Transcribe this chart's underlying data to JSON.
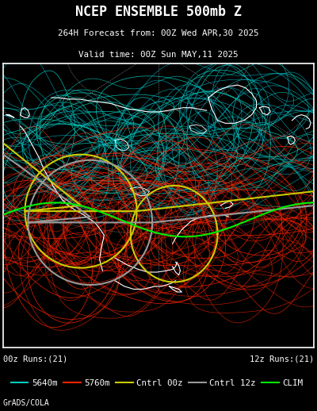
{
  "title_line1": "NCEP ENSEMBLE 500mb Z",
  "title_line2": "264H Forecast from: 00Z Wed APR,30 2025",
  "title_line3": "Valid time: 00Z Sun MAY,11 2025",
  "label_00z": "00z Runs:(21)",
  "label_12z": "12z Runs:(21)",
  "credit": "GrADS/COLA",
  "legend_items": [
    {
      "label": "5640m",
      "color": "#00ccbb",
      "lw": 1.5
    },
    {
      "label": "5760m",
      "color": "#ff2200",
      "lw": 1.5
    },
    {
      "label": "Cntrl 00z",
      "color": "#cccc00",
      "lw": 1.5
    },
    {
      "label": "Cntrl 12z",
      "color": "#999999",
      "lw": 1.5
    },
    {
      "label": "CLIM",
      "color": "#00ee00",
      "lw": 1.5
    }
  ],
  "bg_color": "#000000",
  "text_color": "#ffffff",
  "font_family": "monospace",
  "fig_width": 4.0,
  "fig_height": 5.18,
  "dpi": 100
}
